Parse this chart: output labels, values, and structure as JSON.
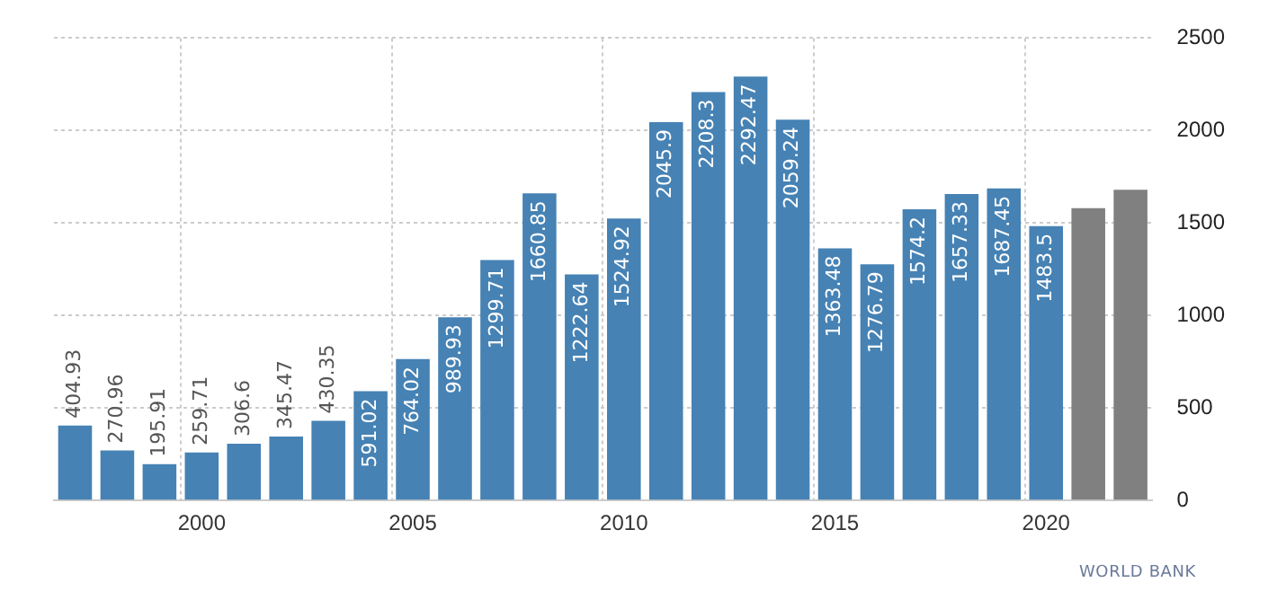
{
  "chart_data": {
    "type": "bar",
    "categories": [
      null,
      null,
      null,
      "2000",
      null,
      null,
      null,
      null,
      "2005",
      null,
      null,
      null,
      null,
      "2010",
      null,
      null,
      null,
      null,
      "2015",
      null,
      null,
      null,
      null,
      "2020",
      null,
      null
    ],
    "values": [
      404.93,
      270.96,
      195.91,
      259.71,
      306.6,
      345.47,
      430.35,
      591.02,
      764.02,
      989.93,
      1299.71,
      1660.85,
      1222.64,
      1524.92,
      2045.9,
      2208.3,
      2292.47,
      2059.24,
      1363.48,
      1276.79,
      1574.2,
      1657.33,
      1687.45,
      1483.5,
      1580,
      1680
    ],
    "colors": [
      "#4682b4",
      "#4682b4",
      "#4682b4",
      "#4682b4",
      "#4682b4",
      "#4682b4",
      "#4682b4",
      "#4682b4",
      "#4682b4",
      "#4682b4",
      "#4682b4",
      "#4682b4",
      "#4682b4",
      "#4682b4",
      "#4682b4",
      "#4682b4",
      "#4682b4",
      "#4682b4",
      "#4682b4",
      "#4682b4",
      "#4682b4",
      "#4682b4",
      "#4682b4",
      "#4682b4",
      "#808080",
      "#808080"
    ],
    "value_labels": [
      "404.93",
      "270.96",
      "195.91",
      "259.71",
      "306.6",
      "345.47",
      "430.35",
      "591.02",
      "764.02",
      "989.93",
      "1299.71",
      "1660.85",
      "1222.64",
      "1524.92",
      "2045.9",
      "2208.3",
      "2292.47",
      "2059.24",
      "1363.48",
      "1276.79",
      "1574.2",
      "1657.33",
      "1687.45",
      "1483.5",
      null,
      null
    ],
    "ylim": [
      0,
      2500
    ],
    "yticks": [
      0,
      500,
      1000,
      1500,
      2000,
      2500
    ],
    "grid": true,
    "legend": false,
    "annotations": [
      "WORLD BANK"
    ]
  }
}
